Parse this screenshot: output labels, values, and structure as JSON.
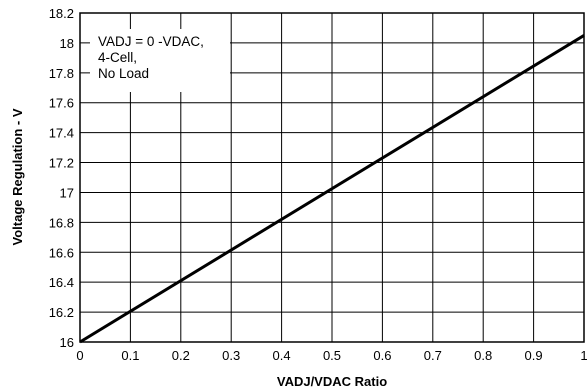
{
  "chart_data": {
    "type": "line",
    "xlabel": "VADJ/VDAC Ratio",
    "ylabel": "Voltage Regulation - V",
    "xlim": [
      0,
      1
    ],
    "ylim": [
      16,
      18.2
    ],
    "x_ticks": [
      "0",
      "0.1",
      "0.2",
      "0.3",
      "0.4",
      "0.5",
      "0.6",
      "0.7",
      "0.8",
      "0.9",
      "1"
    ],
    "y_ticks": [
      "16",
      "16.2",
      "16.4",
      "16.6",
      "16.8",
      "17",
      "17.2",
      "17.4",
      "17.6",
      "17.8",
      "18",
      "18.2"
    ],
    "grid": true,
    "annotation": [
      "VADJ = 0 -VDAC,",
      "4-Cell,",
      "No Load"
    ],
    "series": [
      {
        "x": [
          0,
          1
        ],
        "y": [
          16.0,
          18.05
        ]
      }
    ],
    "colors": {
      "line": "#000000",
      "grid": "#000000",
      "background": "#ffffff"
    }
  }
}
